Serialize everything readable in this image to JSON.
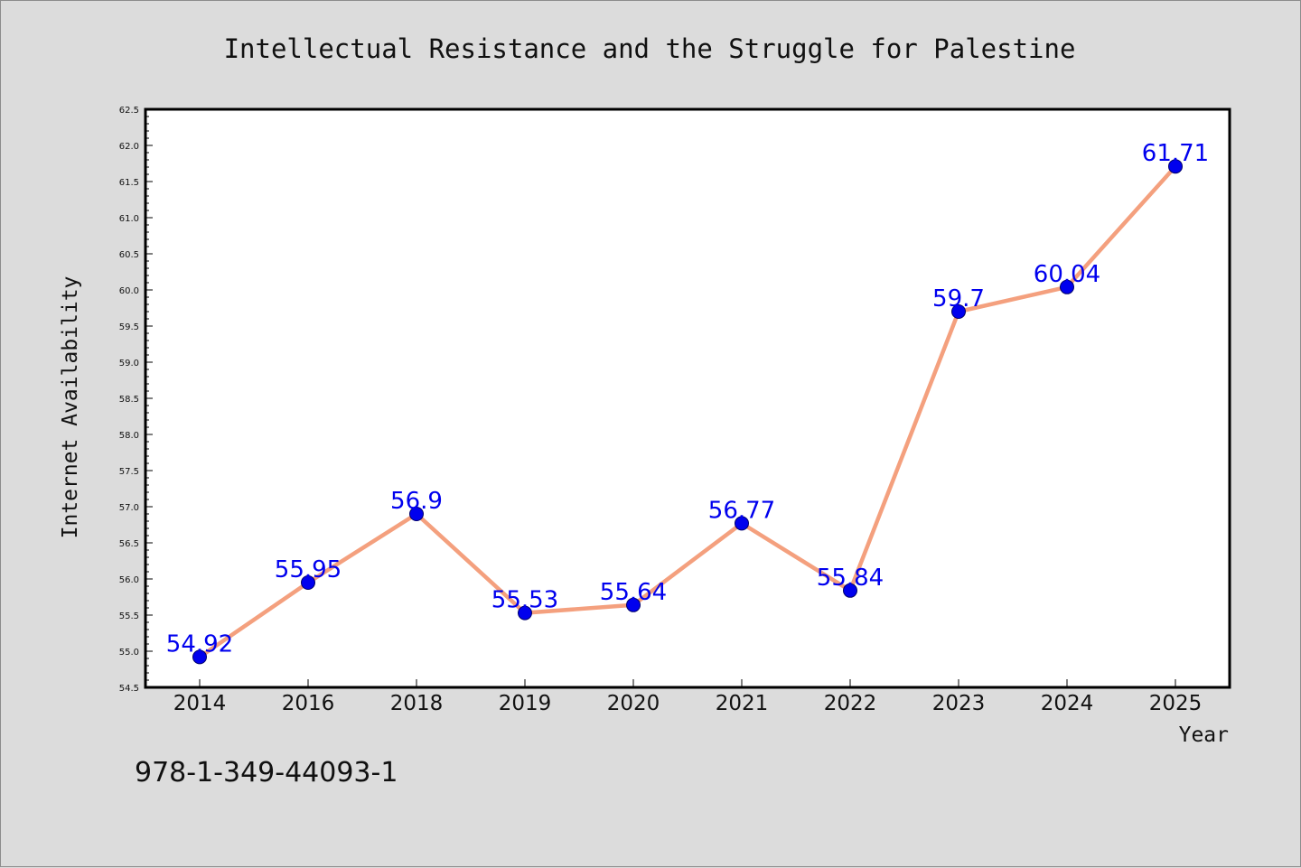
{
  "chart_data": {
    "type": "line",
    "title": "Intellectual Resistance and the Struggle for Palestine",
    "xlabel": "Year",
    "ylabel": "Internet Availability",
    "categories": [
      "2014",
      "2016",
      "2018",
      "2019",
      "2020",
      "2021",
      "2022",
      "2023",
      "2024",
      "2025"
    ],
    "series": [
      {
        "values": [
          54.92,
          55.95,
          56.9,
          55.53,
          55.64,
          56.77,
          55.84,
          59.7,
          60.04,
          61.71
        ],
        "data_labels": [
          "54.92",
          "55.95",
          "56.9",
          "55.53",
          "55.64",
          "56.77",
          "55.84",
          "59.7",
          "60.04",
          "61.71"
        ],
        "line_color": "#f4a07e",
        "marker_color": "#0000ee",
        "marker_edge": "#00006a"
      }
    ],
    "ylim": [
      54.5,
      62.5
    ],
    "y_ticks": [
      "54.5",
      "55.0",
      "55.5",
      "56.0",
      "56.5",
      "57.0",
      "57.5",
      "58.0",
      "58.5",
      "59.0",
      "59.5",
      "60.0",
      "60.5",
      "61.0",
      "61.5",
      "62.0",
      "62.5"
    ],
    "grid": false,
    "legend": "none",
    "label_color": "#0000ee"
  },
  "footer_text": "978-1-349-44093-1",
  "colors": {
    "background": "#dcdcdc",
    "plot_area": "#ffffff",
    "frame": "#000000"
  }
}
